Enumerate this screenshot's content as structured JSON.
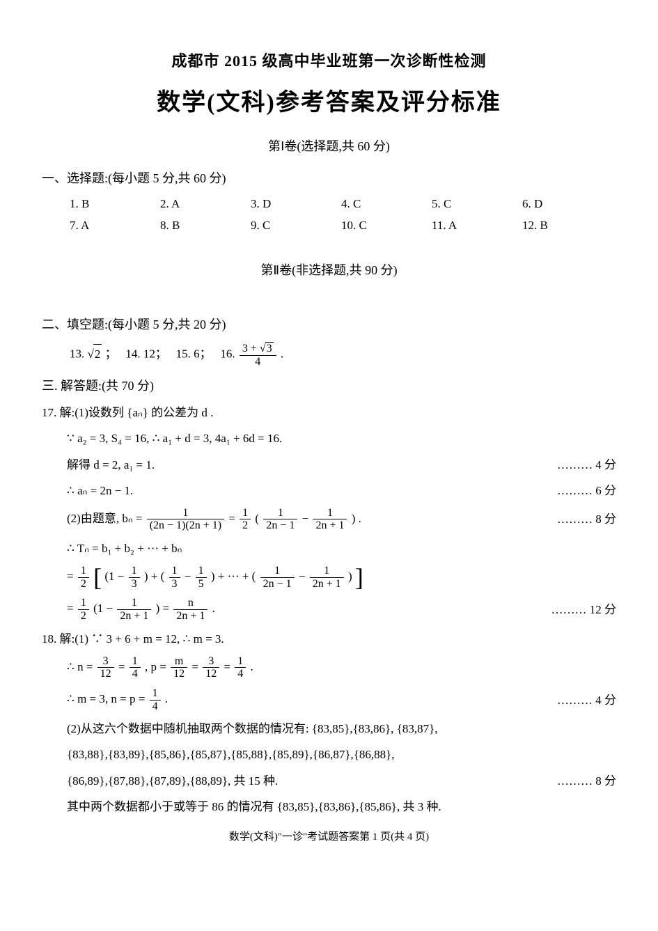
{
  "pretitle": "成都市 2015 级高中毕业班第一次诊断性检测",
  "title": "数学(文科)参考答案及评分标准",
  "part1_header": "第Ⅰ卷(选择题,共 60 分)",
  "section1_heading": "一、选择题:(每小题 5 分,共 60 分)",
  "mc": {
    "row1": [
      "1. B",
      "2. A",
      "3. D",
      "4. C",
      "5. C",
      "6. D"
    ],
    "row2": [
      "7. A",
      "8. B",
      "9. C",
      "10. C",
      "11. A",
      "12. B"
    ]
  },
  "part2_header": "第Ⅱ卷(非选择题,共 90 分)",
  "section2_heading": "二、填空题:(每小题 5 分,共 20 分)",
  "fill": {
    "q13_label": "13.",
    "q13_radicand": "2",
    "q13_tail": " ；",
    "q14": "14. 12；",
    "q15": "15. 6；",
    "q16_label": "16.",
    "q16_num_a": "3 + ",
    "q16_num_rad": "3",
    "q16_den": "4",
    "q16_tail": " ."
  },
  "section3_heading": "三. 解答题:(共 70 分)",
  "p17": {
    "line1": "17. 解:(1)设数列 {aₙ} 的公差为 d .",
    "line2": "∵ a₂ = 3, S₄ = 16,  ∴ a₁ + d = 3, 4a₁ + 6d = 16.",
    "line3": "解得 d = 2, a₁ = 1.",
    "score3": "……… 4 分",
    "line4": "∴ aₙ = 2n − 1.",
    "score4": "……… 6 分",
    "line5_pre": "(2)由题意, bₙ = ",
    "line5_f1_num": "1",
    "line5_f1_den": "(2n − 1)(2n + 1)",
    "line5_mid": " = ",
    "line5_f2_num": "1",
    "line5_f2_den": "2",
    "line5_open": " ( ",
    "line5_f3_num": "1",
    "line5_f3_den": "2n − 1",
    "line5_minus": " − ",
    "line5_f4_num": "1",
    "line5_f4_den": "2n + 1",
    "line5_close": " ) .",
    "score5": "……… 8 分",
    "line6": "∴ Tₙ = b₁ + b₂ + ··· + bₙ",
    "line7_pre": "= ",
    "line7_half_num": "1",
    "line7_half_den": "2",
    "line7_b1": " (1 − ",
    "line7_f1_num": "1",
    "line7_f1_den": "3",
    "line7_b2": ") + (",
    "line7_f2_num": "1",
    "line7_f2_den": "3",
    "line7_b3": " − ",
    "line7_f3_num": "1",
    "line7_f3_den": "5",
    "line7_b4": ") + ··· + (",
    "line7_f4_num": "1",
    "line7_f4_den": "2n − 1",
    "line7_b5": " − ",
    "line7_f5_num": "1",
    "line7_f5_den": "2n + 1",
    "line7_b6": ") ",
    "line8_pre": "= ",
    "line8_half_num": "1",
    "line8_half_den": "2",
    "line8_b1": " (1 − ",
    "line8_f1_num": "1",
    "line8_f1_den": "2n + 1",
    "line8_b2": ") = ",
    "line8_f2_num": "n",
    "line8_f2_den": "2n + 1",
    "line8_tail": " .",
    "score8": "……… 12 分"
  },
  "p18": {
    "line1": "18. 解:(1) ∵ 3 + 6 + m = 12,   ∴ m = 3.",
    "line2_pre": "∴ n = ",
    "line2_f1_num": "3",
    "line2_f1_den": "12",
    "line2_eq1": " = ",
    "line2_f2_num": "1",
    "line2_f2_den": "4",
    "line2_mid": " , p = ",
    "line2_f3_num": "m",
    "line2_f3_den": "12",
    "line2_eq2": " = ",
    "line2_f4_num": "3",
    "line2_f4_den": "12",
    "line2_eq3": " = ",
    "line2_f5_num": "1",
    "line2_f5_den": "4",
    "line2_tail": " .",
    "line3_pre": "∴ m = 3, n = p = ",
    "line3_f_num": "1",
    "line3_f_den": "4",
    "line3_tail": " .",
    "score3": "……… 4 分",
    "line4": "(2)从这六个数据中随机抽取两个数据的情况有: {83,85},{83,86}, {83,87},",
    "line5": "{83,88},{83,89},{85,86},{85,87},{85,88},{85,89},{86,87},{86,88},",
    "line6": "{86,89},{87,88},{87,89},{88,89}, 共 15 种.",
    "score6": "……… 8 分",
    "line7": "其中两个数据都小于或等于 86 的情况有 {83,85},{83,86},{85,86}, 共 3 种."
  },
  "footer": "数学(文科)\"一诊\"考试题答案第 1 页(共 4 页)"
}
